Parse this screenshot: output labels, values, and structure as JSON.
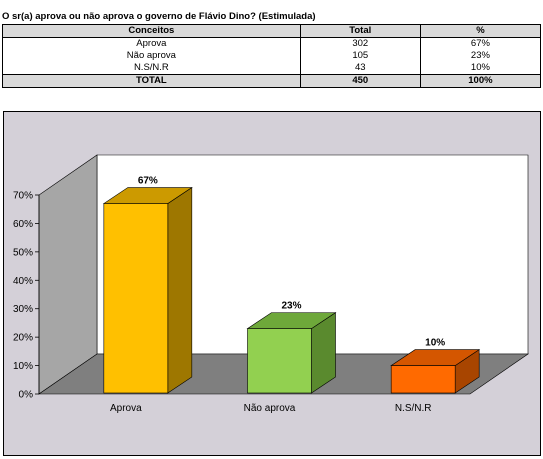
{
  "question": "O sr(a) aprova ou não aprova o governo de Flávio Dino? (Estimulada)",
  "table": {
    "headers": [
      "Conceitos",
      "Total",
      "%"
    ],
    "rows": [
      {
        "label": "Aprova",
        "total": "302",
        "pct": "67%"
      },
      {
        "label": "Não aprova",
        "total": "105",
        "pct": "23%"
      },
      {
        "label": "N.S/N.R",
        "total": "43",
        "pct": "10%"
      }
    ],
    "total_row": {
      "label": "TOTAL",
      "total": "450",
      "pct": "100%"
    }
  },
  "chart_data": {
    "type": "bar",
    "categories": [
      "Aprova",
      "Não aprova",
      "N.S/N.R"
    ],
    "values": [
      67,
      23,
      10
    ],
    "value_labels": [
      "67%",
      "23%",
      "10%"
    ],
    "yticks": [
      "0%",
      "10%",
      "20%",
      "30%",
      "40%",
      "50%",
      "60%",
      "70%"
    ],
    "ylim": [
      0,
      70
    ],
    "grid": false,
    "style": "3d",
    "colors": {
      "bars": [
        {
          "front": "#ffc000",
          "side": "#9e7700",
          "top": "#cc9a00"
        },
        {
          "front": "#92d050",
          "side": "#5a8a2e",
          "top": "#6ea83a"
        },
        {
          "front": "#ff6a00",
          "side": "#a84500",
          "top": "#d45600"
        }
      ],
      "frame_background": "#d4d0d8",
      "back_wall": "#ffffff",
      "side_wall": "#a6a6a6",
      "floor": "#7f7f7f"
    }
  }
}
